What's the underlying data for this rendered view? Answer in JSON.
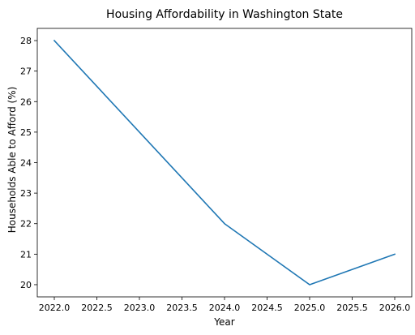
{
  "chart_data": {
    "type": "line",
    "title": "Housing Affordability in Washington State",
    "xlabel": "Year",
    "ylabel": "Households Able to Afford (%)",
    "x": [
      2022,
      2024,
      2025,
      2026
    ],
    "series": [
      {
        "values": [
          28,
          22,
          20,
          21
        ],
        "color": "#1f77b4"
      }
    ],
    "xlim": [
      2021.8,
      2026.2
    ],
    "ylim": [
      19.6,
      28.4
    ],
    "xticks": [
      2022.0,
      2022.5,
      2023.0,
      2023.5,
      2024.0,
      2024.5,
      2025.0,
      2025.5,
      2026.0
    ],
    "xtick_labels": [
      "2022.0",
      "2022.5",
      "2023.0",
      "2023.5",
      "2024.0",
      "2024.5",
      "2025.0",
      "2025.5",
      "2026.0"
    ],
    "yticks": [
      20,
      21,
      22,
      23,
      24,
      25,
      26,
      27,
      28
    ],
    "ytick_labels": [
      "20",
      "21",
      "22",
      "23",
      "24",
      "25",
      "26",
      "27",
      "28"
    ],
    "grid": false,
    "legend": "none"
  }
}
